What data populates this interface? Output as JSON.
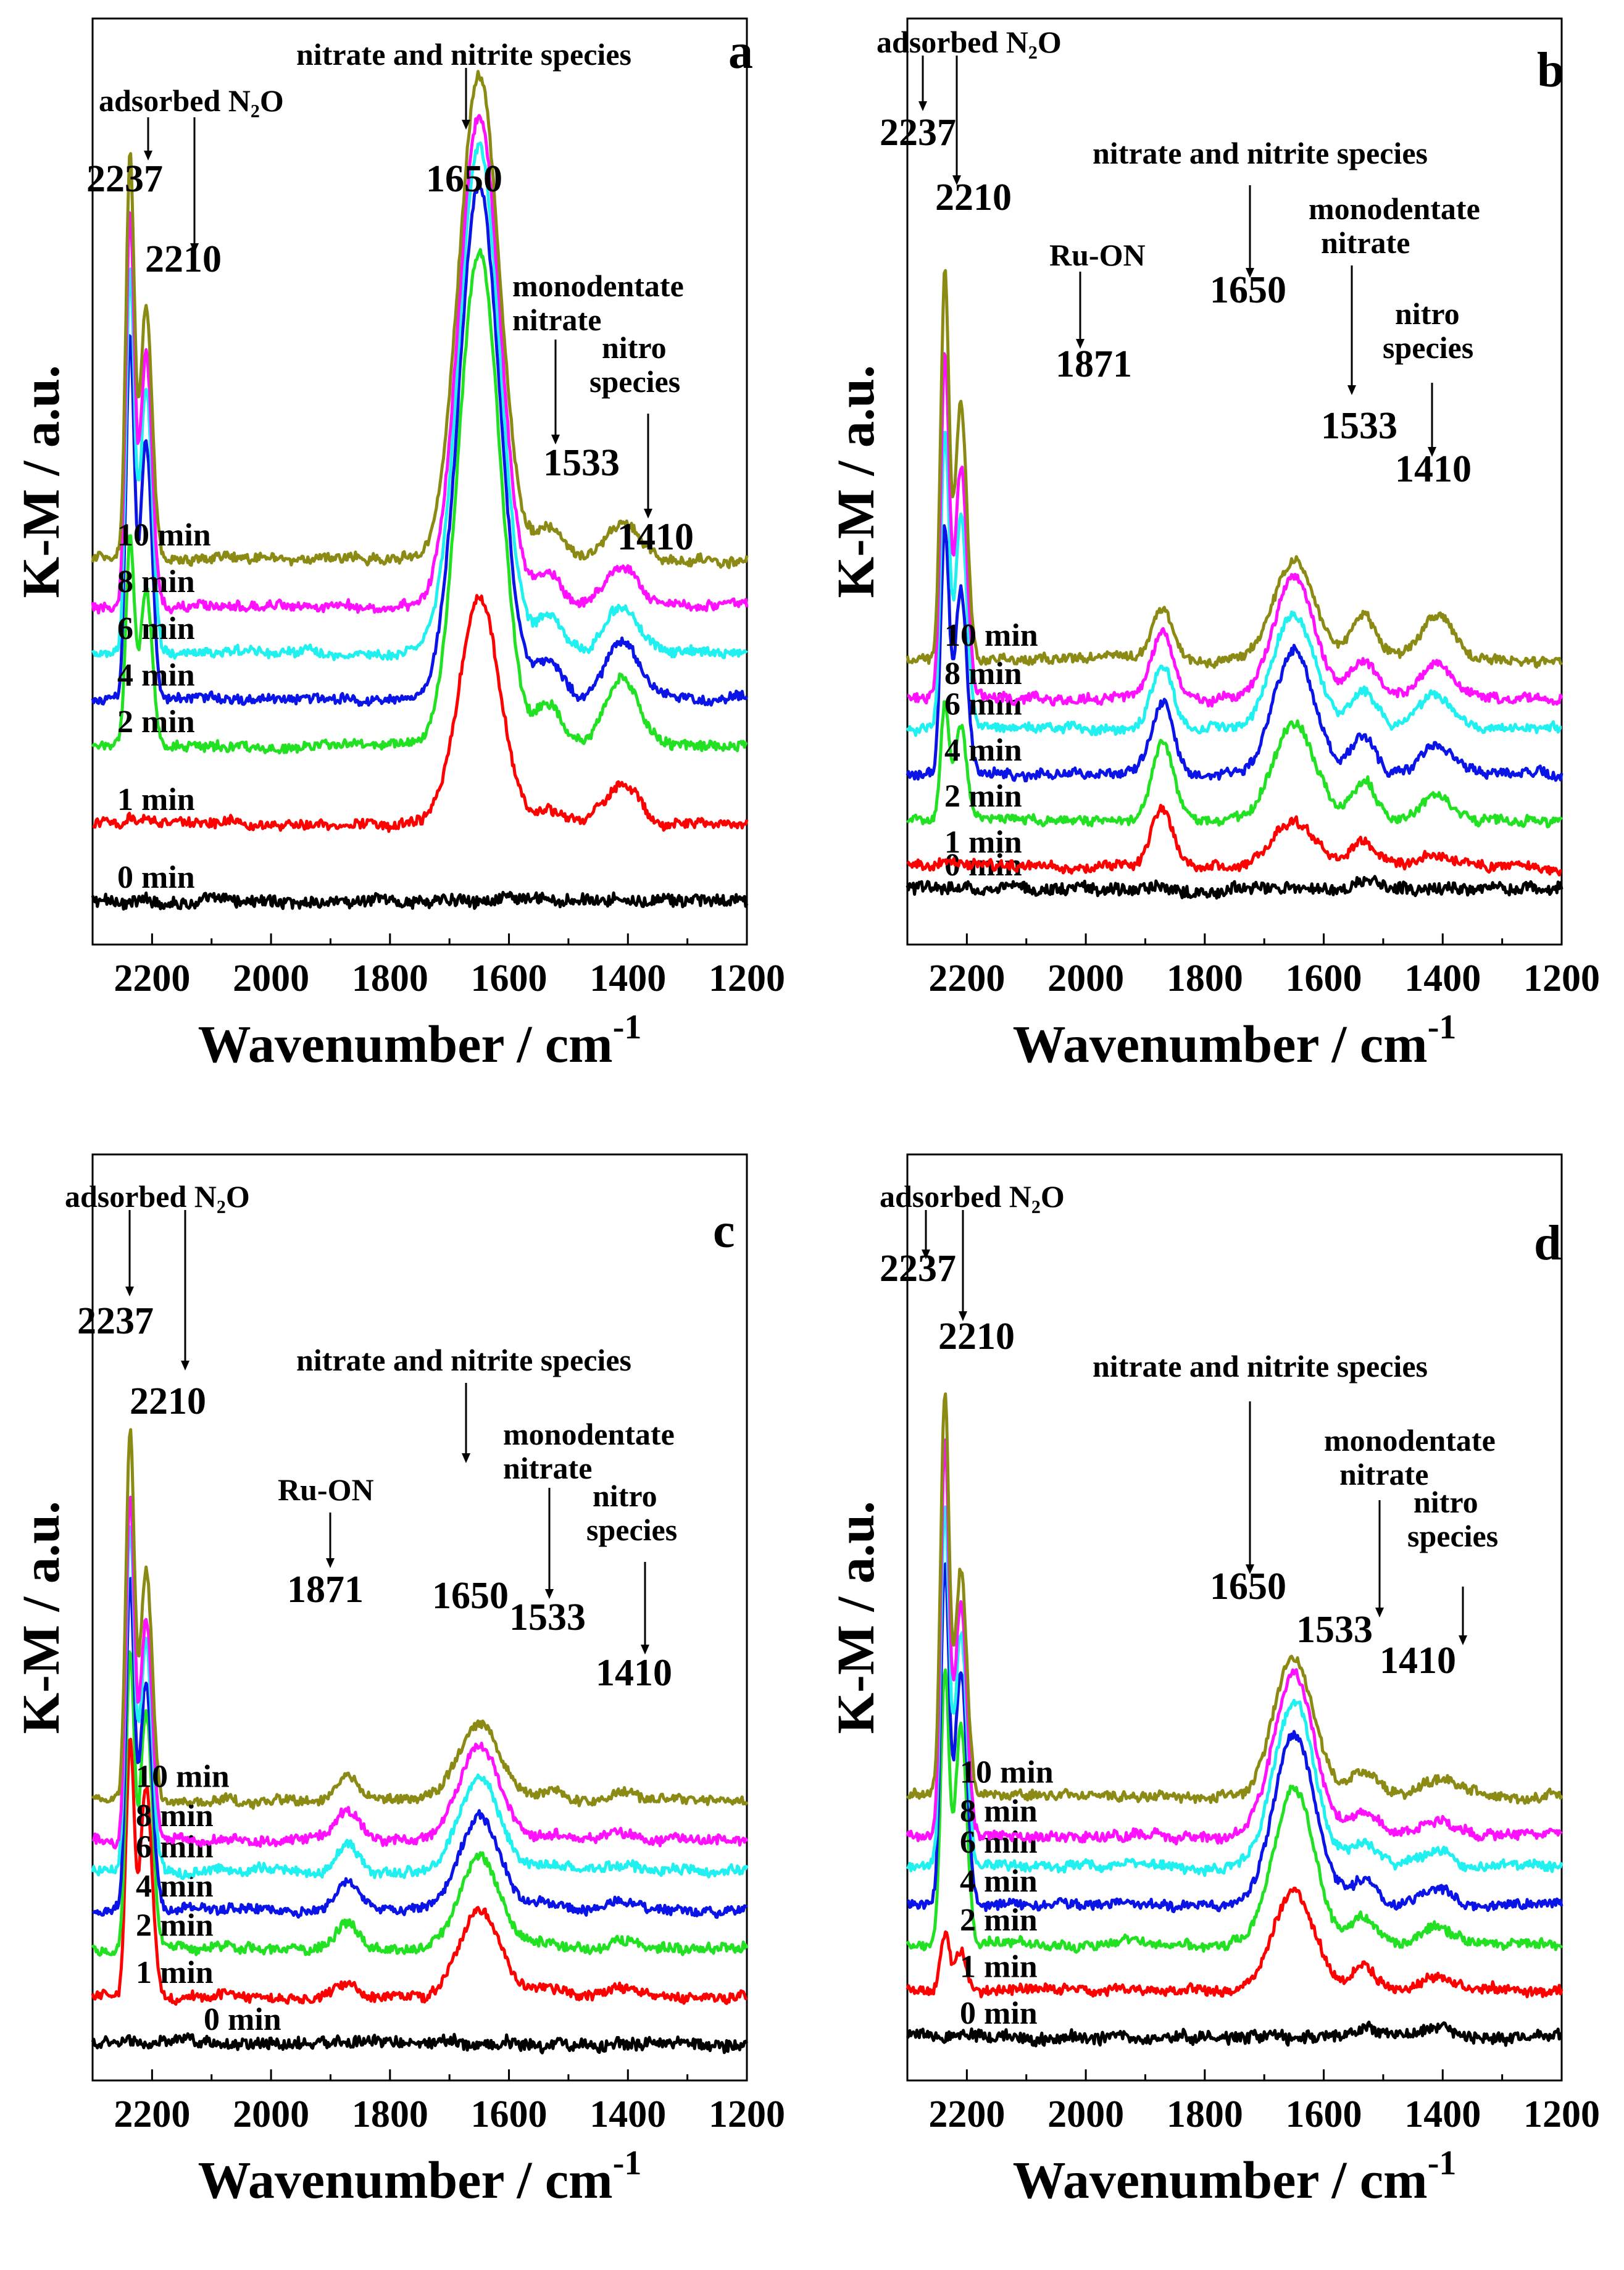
{
  "figure": {
    "y_axis_label": "K-M / a.u.",
    "x_axis_label_main": "Wavenumber / cm",
    "x_axis_label_sup": "-1",
    "time_labels": [
      "0 min",
      "1 min",
      "2 min",
      "4 min",
      "6 min",
      "8 min",
      "10 min"
    ],
    "series_colors": [
      "#000000",
      "#ff0000",
      "#22e022",
      "#0a14e6",
      "#20f0f0",
      "#ff10ff",
      "#8a8a14"
    ]
  },
  "chart_data": [
    {
      "panel": "a",
      "type": "line",
      "xlim": [
        2300,
        1200
      ],
      "x_ticks": [
        2200,
        2000,
        1800,
        1600,
        1400,
        1200
      ],
      "xlabel": "Wavenumber / cm-1",
      "ylabel": "K-M / a.u.",
      "series": [
        {
          "name": "0 min",
          "baseline": 0.0,
          "peaks": [
            [
              2237,
              0.0
            ],
            [
              2210,
              0.0
            ],
            [
              1871,
              0.0
            ],
            [
              1650,
              0.05
            ],
            [
              1533,
              0.0
            ],
            [
              1410,
              0.0
            ]
          ]
        },
        {
          "name": "1 min",
          "baseline": 1.0,
          "peaks": [
            [
              2237,
              0.1
            ],
            [
              2210,
              0.05
            ],
            [
              1871,
              0.0
            ],
            [
              1650,
              2.9
            ],
            [
              1533,
              0.15
            ],
            [
              1410,
              0.5
            ]
          ]
        },
        {
          "name": "2 min",
          "baseline": 2.0,
          "peaks": [
            [
              2237,
              2.6
            ],
            [
              2210,
              2.0
            ],
            [
              1871,
              0.0
            ],
            [
              1650,
              6.4
            ],
            [
              1533,
              0.5
            ],
            [
              1410,
              0.85
            ]
          ]
        },
        {
          "name": "4 min",
          "baseline": 2.6,
          "peaks": [
            [
              2237,
              4.6
            ],
            [
              2210,
              3.3
            ],
            [
              1871,
              0.0
            ],
            [
              1650,
              6.6
            ],
            [
              1533,
              0.5
            ],
            [
              1410,
              0.75
            ]
          ]
        },
        {
          "name": "6 min",
          "baseline": 3.2,
          "peaks": [
            [
              2237,
              4.8
            ],
            [
              2210,
              3.4
            ],
            [
              1871,
              0.0
            ],
            [
              1650,
              6.5
            ],
            [
              1533,
              0.45
            ],
            [
              1410,
              0.6
            ]
          ]
        },
        {
          "name": "8 min",
          "baseline": 3.8,
          "peaks": [
            [
              2237,
              5.0
            ],
            [
              2210,
              3.3
            ],
            [
              1871,
              0.0
            ],
            [
              1650,
              6.3
            ],
            [
              1533,
              0.4
            ],
            [
              1410,
              0.5
            ]
          ]
        },
        {
          "name": "10 min",
          "baseline": 4.4,
          "peaks": [
            [
              2237,
              5.1
            ],
            [
              2210,
              3.3
            ],
            [
              1871,
              0.0
            ],
            [
              1650,
              6.2
            ],
            [
              1533,
              0.4
            ],
            [
              1410,
              0.45
            ]
          ]
        }
      ],
      "peak_labels": [
        "2237",
        "2210",
        "1650",
        "1533",
        "1410"
      ],
      "annotations": {
        "adsorbed": "adsorbed N₂O",
        "nitrate_nitrite": "nitrate and nitrite species",
        "monodentate_1": "monodentate",
        "monodentate_2": "nitrate",
        "nitro_1": "nitro",
        "nitro_2": "species"
      }
    },
    {
      "panel": "b",
      "type": "line",
      "xlim": [
        2300,
        1200
      ],
      "x_ticks": [
        2200,
        2000,
        1800,
        1600,
        1400,
        1200
      ],
      "xlabel": "Wavenumber / cm-1",
      "ylabel": "K-M / a.u.",
      "series": [
        {
          "name": "0 min",
          "baseline": 0.0,
          "peaks": [
            [
              2237,
              0.0
            ],
            [
              2210,
              0.0
            ],
            [
              1871,
              0.0
            ],
            [
              1650,
              0.0
            ],
            [
              1533,
              0.1
            ],
            [
              1410,
              0.0
            ]
          ]
        },
        {
          "name": "1 min",
          "baseline": 0.3,
          "peaks": [
            [
              2237,
              0.0
            ],
            [
              2210,
              0.0
            ],
            [
              1871,
              0.75
            ],
            [
              1650,
              0.6
            ],
            [
              1533,
              0.3
            ],
            [
              1410,
              0.15
            ]
          ]
        },
        {
          "name": "2 min",
          "baseline": 0.9,
          "peaks": [
            [
              2237,
              1.5
            ],
            [
              2210,
              1.2
            ],
            [
              1871,
              1.0
            ],
            [
              1650,
              1.3
            ],
            [
              1533,
              0.5
            ],
            [
              1410,
              0.3
            ]
          ]
        },
        {
          "name": "4 min",
          "baseline": 1.5,
          "peaks": [
            [
              2237,
              3.2
            ],
            [
              2210,
              2.4
            ],
            [
              1871,
              0.9
            ],
            [
              1650,
              1.6
            ],
            [
              1533,
              0.5
            ],
            [
              1410,
              0.4
            ]
          ]
        },
        {
          "name": "6 min",
          "baseline": 2.1,
          "peaks": [
            [
              2237,
              3.8
            ],
            [
              2210,
              2.8
            ],
            [
              1871,
              0.85
            ],
            [
              1650,
              1.5
            ],
            [
              1533,
              0.5
            ],
            [
              1410,
              0.45
            ]
          ]
        },
        {
          "name": "8 min",
          "baseline": 2.5,
          "peaks": [
            [
              2237,
              4.4
            ],
            [
              2210,
              3.0
            ],
            [
              1871,
              0.85
            ],
            [
              1650,
              1.6
            ],
            [
              1533,
              0.5
            ],
            [
              1410,
              0.45
            ]
          ]
        },
        {
          "name": "10 min",
          "baseline": 3.0,
          "peaks": [
            [
              2237,
              5.0
            ],
            [
              2210,
              3.4
            ],
            [
              1871,
              0.65
            ],
            [
              1650,
              1.3
            ],
            [
              1533,
              0.55
            ],
            [
              1410,
              0.55
            ]
          ]
        }
      ],
      "peak_labels": [
        "2237",
        "2210",
        "1871",
        "1650",
        "1533",
        "1410"
      ],
      "annotations": {
        "adsorbed": "adsorbed N₂O",
        "ru_on": "Ru-ON",
        "nitrate_nitrite": "nitrate and nitrite species",
        "monodentate_1": "monodentate",
        "monodentate_2": "nitrate",
        "nitro_1": "nitro",
        "nitro_2": "species"
      }
    },
    {
      "panel": "c",
      "type": "line",
      "xlim": [
        2300,
        1200
      ],
      "x_ticks": [
        2200,
        2000,
        1800,
        1600,
        1400,
        1200
      ],
      "xlabel": "Wavenumber / cm-1",
      "ylabel": "K-M / a.u.",
      "series": [
        {
          "name": "0 min",
          "baseline": 0.0,
          "peaks": [
            [
              2237,
              0.0
            ],
            [
              2210,
              0.0
            ],
            [
              1871,
              0.0
            ],
            [
              1650,
              0.0
            ],
            [
              1533,
              0.0
            ],
            [
              1410,
              0.0
            ]
          ]
        },
        {
          "name": "1 min",
          "baseline": 0.6,
          "peaks": [
            [
              2237,
              3.2
            ],
            [
              2210,
              2.7
            ],
            [
              1871,
              0.2
            ],
            [
              1650,
              1.1
            ],
            [
              1533,
              0.1
            ],
            [
              1410,
              0.1
            ]
          ]
        },
        {
          "name": "2 min",
          "baseline": 1.2,
          "peaks": [
            [
              2237,
              3.7
            ],
            [
              2210,
              3.0
            ],
            [
              1871,
              0.35
            ],
            [
              1650,
              1.2
            ],
            [
              1533,
              0.1
            ],
            [
              1410,
              0.1
            ]
          ]
        },
        {
          "name": "4 min",
          "baseline": 1.7,
          "peaks": [
            [
              2237,
              4.1
            ],
            [
              2210,
              2.9
            ],
            [
              1871,
              0.35
            ],
            [
              1650,
              1.2
            ],
            [
              1533,
              0.1
            ],
            [
              1410,
              0.1
            ]
          ]
        },
        {
          "name": "6 min",
          "baseline": 2.2,
          "peaks": [
            [
              2237,
              4.3
            ],
            [
              2210,
              2.9
            ],
            [
              1871,
              0.35
            ],
            [
              1650,
              1.2
            ],
            [
              1533,
              0.1
            ],
            [
              1410,
              0.1
            ]
          ]
        },
        {
          "name": "8 min",
          "baseline": 2.6,
          "peaks": [
            [
              2237,
              4.4
            ],
            [
              2210,
              2.8
            ],
            [
              1871,
              0.35
            ],
            [
              1650,
              1.2
            ],
            [
              1533,
              0.1
            ],
            [
              1410,
              0.1
            ]
          ]
        },
        {
          "name": "10 min",
          "baseline": 3.1,
          "peaks": [
            [
              2237,
              4.7
            ],
            [
              2210,
              2.9
            ],
            [
              1871,
              0.3
            ],
            [
              1650,
              1.0
            ],
            [
              1533,
              0.1
            ],
            [
              1410,
              0.1
            ]
          ]
        }
      ],
      "peak_labels": [
        "2237",
        "2210",
        "1871",
        "1650",
        "1533",
        "1410"
      ],
      "annotations": {
        "adsorbed": "adsorbed N₂O",
        "ru_on": "Ru-ON",
        "nitrate_nitrite": "nitrate and nitrite species",
        "monodentate_1": "monodentate",
        "monodentate_2": "nitrate",
        "nitro_1": "nitro",
        "nitro_2": "species"
      }
    },
    {
      "panel": "d",
      "type": "line",
      "xlim": [
        2300,
        1200
      ],
      "x_ticks": [
        2200,
        2000,
        1800,
        1600,
        1400,
        1200
      ],
      "xlabel": "Wavenumber / cm-1",
      "ylabel": "K-M / a.u.",
      "series": [
        {
          "name": "0 min",
          "baseline": 0.0,
          "peaks": [
            [
              2237,
              0.0
            ],
            [
              2210,
              0.0
            ],
            [
              1871,
              0.0
            ],
            [
              1650,
              0.0
            ],
            [
              1533,
              0.1
            ],
            [
              1410,
              0.1
            ]
          ]
        },
        {
          "name": "1 min",
          "baseline": 0.6,
          "peaks": [
            [
              2237,
              0.7
            ],
            [
              2210,
              0.5
            ],
            [
              1871,
              0.0
            ],
            [
              1650,
              1.3
            ],
            [
              1533,
              0.3
            ],
            [
              1410,
              0.2
            ]
          ]
        },
        {
          "name": "2 min",
          "baseline": 1.2,
          "peaks": [
            [
              2237,
              3.5
            ],
            [
              2210,
              2.8
            ],
            [
              1871,
              0.0
            ],
            [
              1650,
              2.0
            ],
            [
              1533,
              0.35
            ],
            [
              1410,
              0.2
            ]
          ]
        },
        {
          "name": "4 min",
          "baseline": 1.7,
          "peaks": [
            [
              2237,
              4.3
            ],
            [
              2210,
              3.0
            ],
            [
              1871,
              0.0
            ],
            [
              1650,
              2.2
            ],
            [
              1533,
              0.35
            ],
            [
              1410,
              0.2
            ]
          ]
        },
        {
          "name": "6 min",
          "baseline": 2.2,
          "peaks": [
            [
              2237,
              4.6
            ],
            [
              2210,
              3.0
            ],
            [
              1871,
              0.0
            ],
            [
              1650,
              2.1
            ],
            [
              1533,
              0.3
            ],
            [
              1410,
              0.2
            ]
          ]
        },
        {
          "name": "8 min",
          "baseline": 2.6,
          "peaks": [
            [
              2237,
              5.0
            ],
            [
              2210,
              3.0
            ],
            [
              1871,
              0.0
            ],
            [
              1650,
              2.1
            ],
            [
              1533,
              0.3
            ],
            [
              1410,
              0.2
            ]
          ]
        },
        {
          "name": "10 min",
          "baseline": 3.1,
          "peaks": [
            [
              2237,
              5.1
            ],
            [
              2210,
              2.9
            ],
            [
              1871,
              0.0
            ],
            [
              1650,
              1.8
            ],
            [
              1533,
              0.3
            ],
            [
              1410,
              0.2
            ]
          ]
        }
      ],
      "peak_labels": [
        "2237",
        "2210",
        "1650",
        "1533",
        "1410"
      ],
      "annotations": {
        "adsorbed": "adsorbed N₂O",
        "nitrate_nitrite": "nitrate and nitrite species",
        "monodentate_1": "monodentate",
        "monodentate_2": "nitrate",
        "nitro_1": "nitro",
        "nitro_2": "species"
      }
    }
  ]
}
